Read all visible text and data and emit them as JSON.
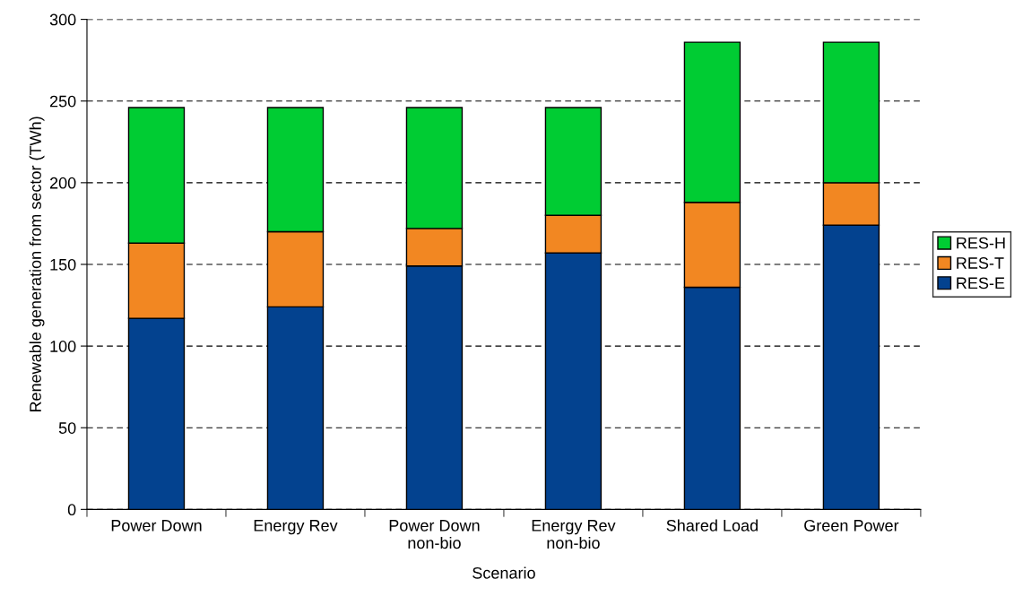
{
  "chart_data": {
    "type": "bar",
    "stacked": true,
    "categories": [
      "Power Down",
      "Energy Rev",
      "Power Down\nnon-bio",
      "Energy Rev\nnon-bio",
      "Shared Load",
      "Green Power"
    ],
    "series": [
      {
        "name": "RES-E",
        "color": "#03428f",
        "values": [
          117,
          124,
          149,
          157,
          136,
          174
        ]
      },
      {
        "name": "RES-T",
        "color": "#f28722",
        "values": [
          46,
          46,
          23,
          23,
          52,
          26
        ]
      },
      {
        "name": "RES-H",
        "color": "#00cc33",
        "values": [
          83,
          76,
          74,
          66,
          98,
          86
        ]
      }
    ],
    "xlabel": "Scenario",
    "ylabel": "Renewable generation from sector (TWh)",
    "ylim": [
      0,
      300
    ],
    "yticks": [
      0,
      50,
      100,
      150,
      200,
      250,
      300
    ],
    "grid": "y",
    "legend": "right"
  }
}
